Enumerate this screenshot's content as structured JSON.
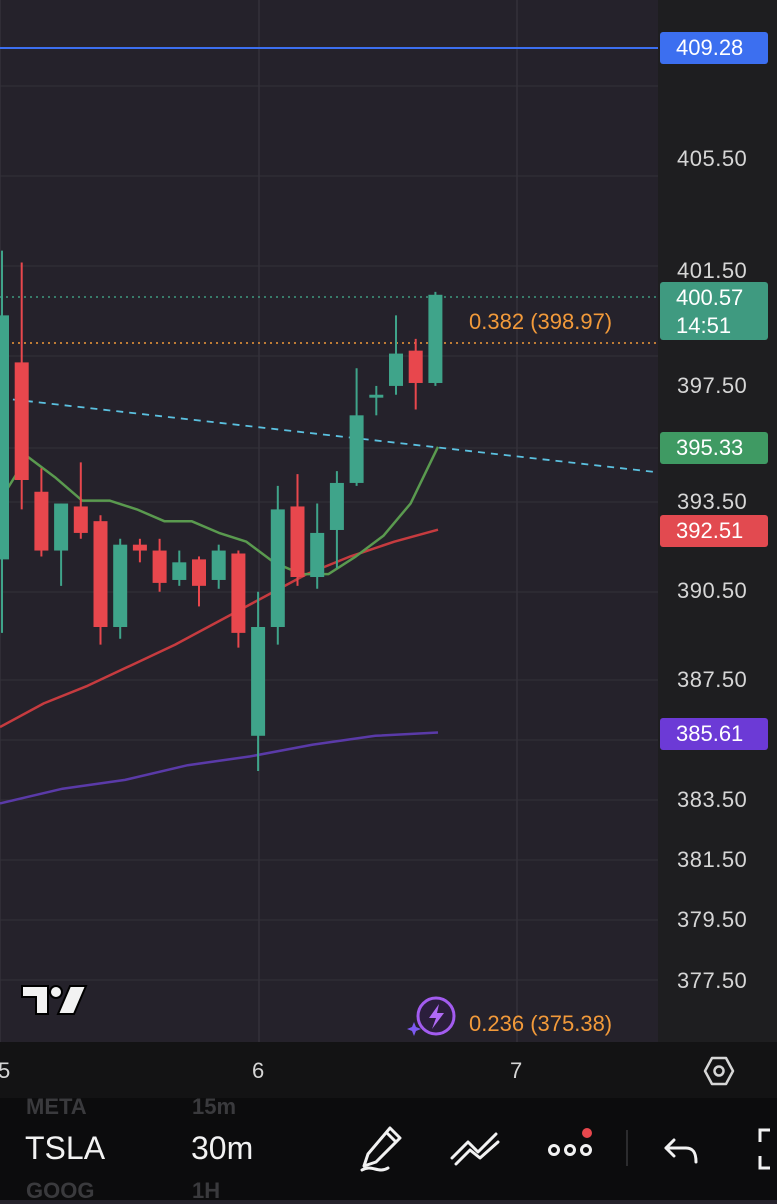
{
  "chart_data": {
    "type": "candlestick",
    "symbol": "TSLA",
    "interval": "30m",
    "y_ticks": [
      "405.50",
      "401.50",
      "397.50",
      "393.50",
      "390.50",
      "387.50",
      "383.50",
      "381.50",
      "379.50",
      "377.50"
    ],
    "x_ticks": [
      "5",
      "6",
      "7"
    ],
    "price_tags": {
      "alert_line": "409.28",
      "current_price": "400.57",
      "countdown": "14:51",
      "ma_fast": "395.33",
      "ma_mid": "392.51",
      "ma_slow": "385.61"
    },
    "fib_levels": [
      {
        "ratio": "0.382",
        "price": "(398.97)"
      },
      {
        "ratio": "0.236",
        "price": "(375.38)"
      }
    ],
    "candles": [
      {
        "o": 391.5,
        "h": 402.0,
        "l": 389.0,
        "c": 399.8
      },
      {
        "o": 398.2,
        "h": 401.6,
        "l": 393.2,
        "c": 394.2
      },
      {
        "o": 393.8,
        "h": 394.6,
        "l": 391.6,
        "c": 391.8
      },
      {
        "o": 391.8,
        "h": 393.4,
        "l": 390.6,
        "c": 393.4
      },
      {
        "o": 393.3,
        "h": 394.8,
        "l": 392.2,
        "c": 392.4
      },
      {
        "o": 392.8,
        "h": 393.0,
        "l": 388.6,
        "c": 389.2
      },
      {
        "o": 389.2,
        "h": 392.2,
        "l": 388.8,
        "c": 392.0
      },
      {
        "o": 392.0,
        "h": 392.2,
        "l": 391.4,
        "c": 391.8
      },
      {
        "o": 391.8,
        "h": 392.2,
        "l": 390.4,
        "c": 390.7
      },
      {
        "o": 390.8,
        "h": 391.8,
        "l": 390.6,
        "c": 391.4
      },
      {
        "o": 391.5,
        "h": 391.6,
        "l": 389.9,
        "c": 390.6
      },
      {
        "o": 390.8,
        "h": 392.0,
        "l": 390.5,
        "c": 391.8
      },
      {
        "o": 391.7,
        "h": 391.8,
        "l": 388.5,
        "c": 389.0
      },
      {
        "o": 385.5,
        "h": 390.4,
        "l": 384.3,
        "c": 389.2
      },
      {
        "o": 389.2,
        "h": 394.0,
        "l": 388.6,
        "c": 393.2
      },
      {
        "o": 393.3,
        "h": 394.4,
        "l": 390.6,
        "c": 390.9
      },
      {
        "o": 390.9,
        "h": 393.4,
        "l": 390.5,
        "c": 392.4
      },
      {
        "o": 392.5,
        "h": 394.5,
        "l": 391.2,
        "c": 394.1
      },
      {
        "o": 394.1,
        "h": 398.0,
        "l": 394.0,
        "c": 396.4
      },
      {
        "o": 397.0,
        "h": 397.4,
        "l": 396.4,
        "c": 397.1
      },
      {
        "o": 397.4,
        "h": 399.8,
        "l": 397.1,
        "c": 398.5
      },
      {
        "o": 398.6,
        "h": 399.0,
        "l": 396.6,
        "c": 397.5
      },
      {
        "o": 397.5,
        "h": 400.6,
        "l": 397.4,
        "c": 400.5
      }
    ],
    "ma_fast_points": [
      393.5,
      395.0,
      394.3,
      393.5,
      393.5,
      393.2,
      392.8,
      392.8,
      392.4,
      392.1,
      391.4,
      391.0,
      391.0,
      391.6,
      392.3,
      393.4,
      395.33
    ],
    "ma_mid_points": [
      385.8,
      386.6,
      387.2,
      387.9,
      388.6,
      389.4,
      390.2,
      391.0,
      391.6,
      392.1,
      392.51
    ],
    "ma_slow_points": [
      383.2,
      383.7,
      384.0,
      384.5,
      384.8,
      385.2,
      385.5,
      385.61
    ],
    "colors": {
      "up": "#3fa48a",
      "down": "#e8474d",
      "ma_fast": "#5a9a4f",
      "ma_mid": "#c63b3f",
      "ma_slow": "#5a3aa8",
      "alert": "#3c6ff0",
      "fib": "#f29a3a",
      "trend": "#5bc1e0"
    }
  },
  "watermark_ghost": {
    "above": [
      "META",
      "15m"
    ],
    "below": [
      "GOOG",
      "1H"
    ]
  },
  "bottom_bar": {
    "symbol": "TSLA",
    "interval": "30m"
  },
  "icons": [
    "tradingview-logo",
    "ai-assistant-icon",
    "settings-hexagon-icon",
    "draw-pen-icon",
    "indicators-icon",
    "more-icon",
    "undo-icon",
    "fullscreen-icon"
  ]
}
